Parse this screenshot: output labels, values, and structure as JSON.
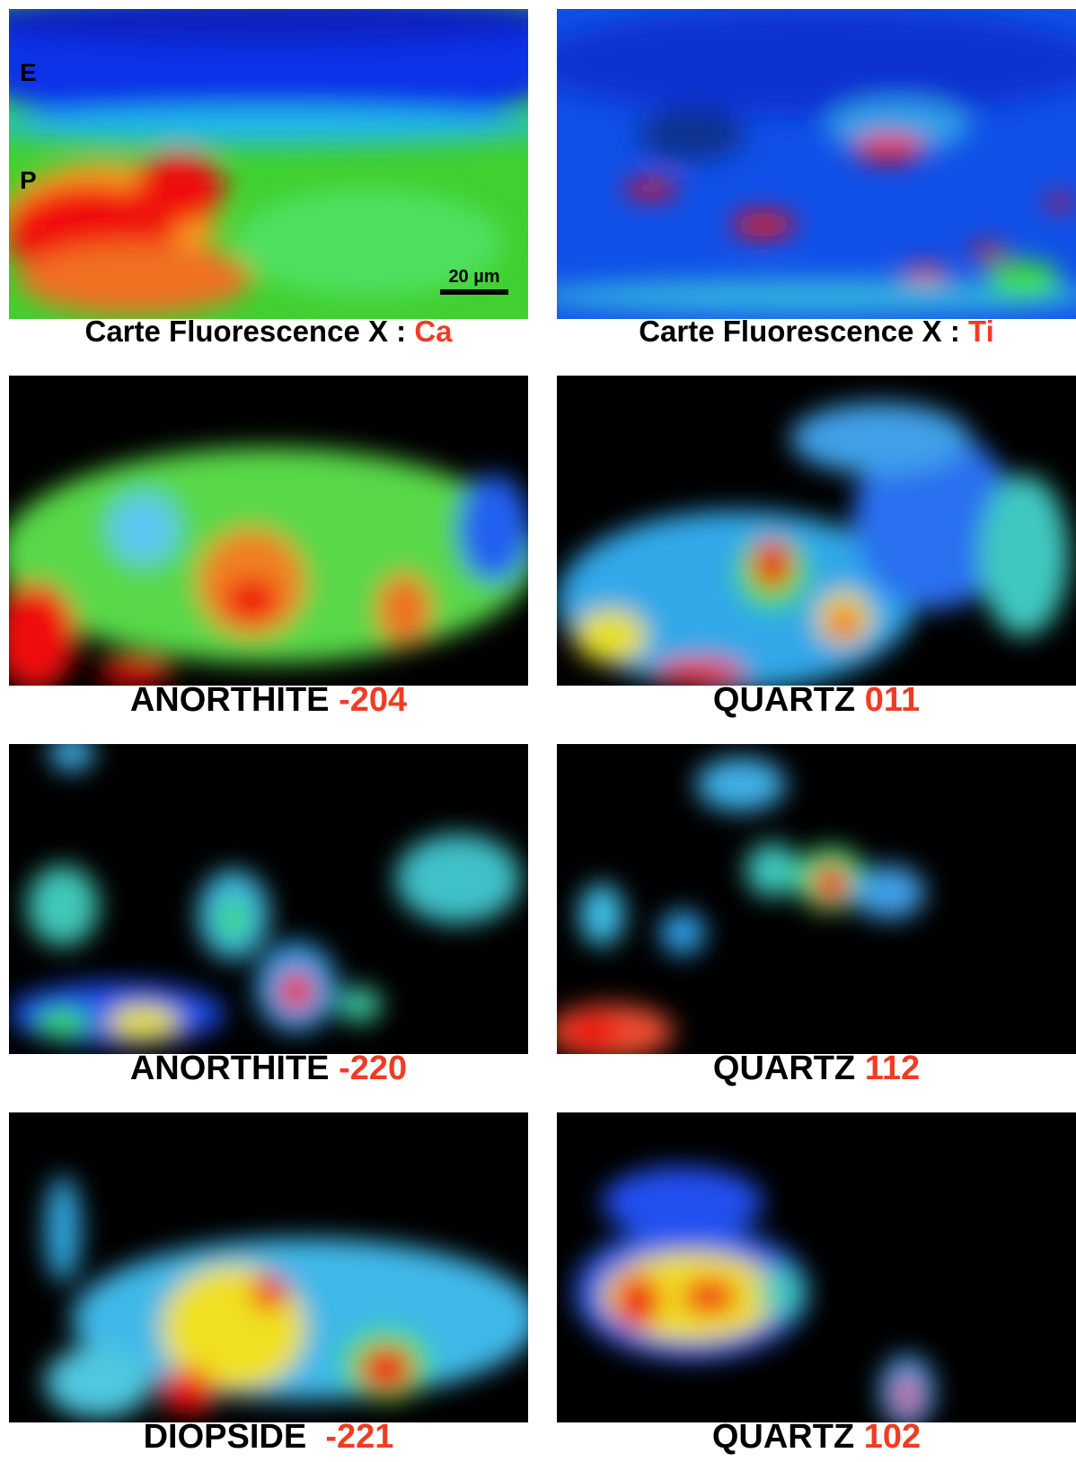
{
  "panels": [
    {
      "caption": "Carte Fluorescence X : ",
      "highlight": "Ca",
      "labels": [
        "E",
        "P"
      ],
      "scale": "20 µm"
    },
    {
      "caption": "Carte Fluorescence X : ",
      "highlight": "Ti"
    },
    {
      "caption": "ANORTHITE ",
      "highlight": "-204"
    },
    {
      "caption": "QUARTZ ",
      "highlight": "011"
    },
    {
      "caption": "ANORTHITE ",
      "highlight": "-220"
    },
    {
      "caption": "QUARTZ ",
      "highlight": "112"
    },
    {
      "caption": "DIOPSIDE  ",
      "highlight": "-221"
    },
    {
      "caption": "QUARTZ ",
      "highlight": "102"
    }
  ]
}
